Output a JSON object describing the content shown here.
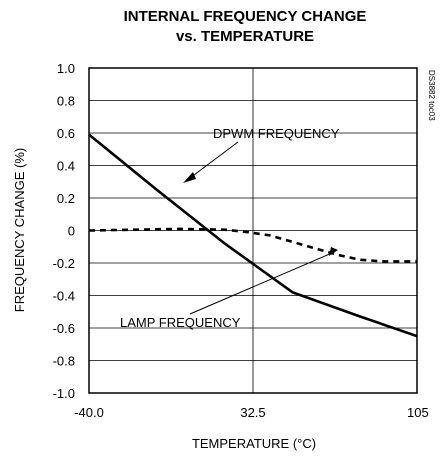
{
  "chart_data": {
    "type": "line",
    "title": "INTERNAL FREQUENCY CHANGE",
    "subtitle": "vs. TEMPERATURE",
    "xlabel": "TEMPERATURE (°C)",
    "ylabel": "FREQUENCY CHANGE (%)",
    "xlim": [
      -40,
      105
    ],
    "ylim": [
      -1.0,
      1.0
    ],
    "x_ticks": [
      -40,
      32.5,
      105
    ],
    "x_tick_labels": [
      "-40.0",
      "32.5",
      "105"
    ],
    "y_ticks": [
      1.0,
      0.8,
      0.6,
      0.4,
      0.2,
      0,
      -0.2,
      -0.4,
      -0.6,
      -0.8,
      -1.0
    ],
    "y_tick_labels": [
      "1.0",
      "0.8",
      "0.6",
      "0.4",
      "0.2",
      "0",
      "-0.2",
      "-0.4",
      "-0.6",
      "-0.8",
      "-1.0"
    ],
    "grid": true,
    "series": [
      {
        "name": "DPWM FREQUENCY",
        "style": "solid",
        "x": [
          -40,
          -10,
          20,
          50,
          80,
          105
        ],
        "y": [
          0.59,
          0.25,
          -0.08,
          -0.38,
          -0.53,
          -0.65
        ]
      },
      {
        "name": "LAMP FREQUENCY",
        "style": "dashed",
        "x": [
          -40,
          -20,
          0,
          20,
          30,
          40,
          50,
          60,
          70,
          80,
          90,
          105
        ],
        "y": [
          0.0,
          0.005,
          0.01,
          0.005,
          -0.01,
          -0.03,
          -0.07,
          -0.11,
          -0.15,
          -0.18,
          -0.19,
          -0.19
        ]
      }
    ],
    "annotations": [
      {
        "text": "DPWM FREQUENCY",
        "series": "DPWM FREQUENCY"
      },
      {
        "text": "LAMP FREQUENCY",
        "series": "LAMP FREQUENCY"
      }
    ],
    "watermark": "DS3882 toc03"
  }
}
